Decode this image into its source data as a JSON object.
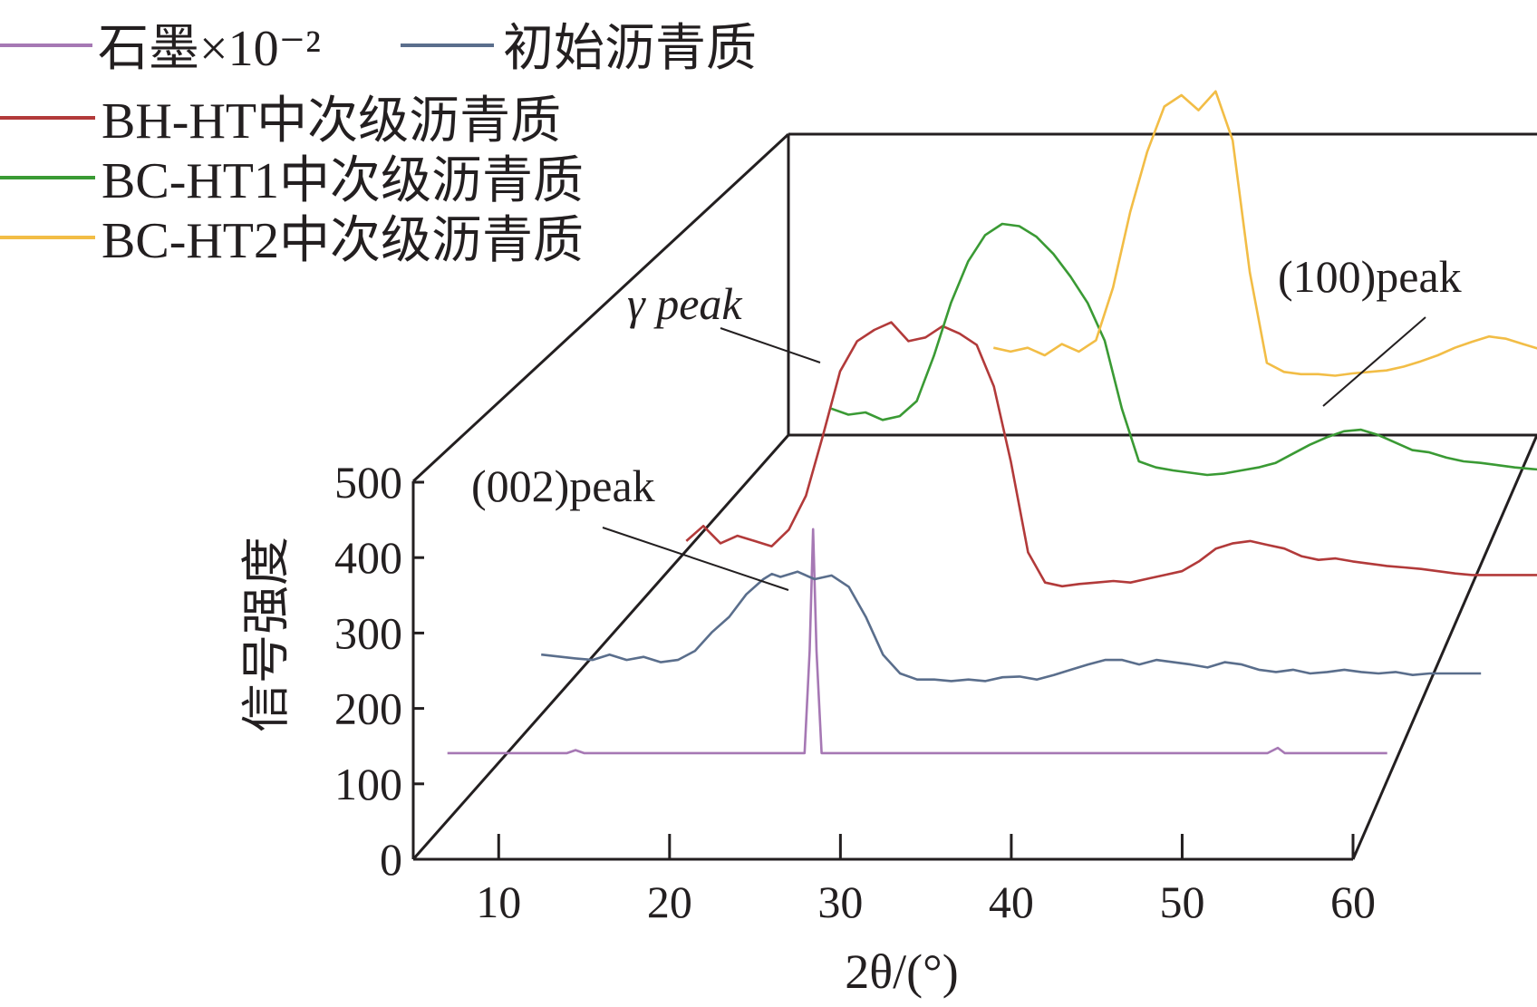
{
  "chart_data": {
    "type": "line",
    "xlabel": "2θ/(°)",
    "ylabel": "信号强度",
    "xlim": [
      5,
      60
    ],
    "ylim": [
      0,
      500
    ],
    "x_ticks": [
      "10",
      "20",
      "30",
      "40",
      "50",
      "60"
    ],
    "y_ticks": [
      "0",
      "100",
      "200",
      "300",
      "400",
      "500"
    ],
    "legend": [
      {
        "label": "石墨×10⁻²",
        "color": "#a678b4"
      },
      {
        "label": "初始沥青质",
        "color": "#5a6e8c"
      },
      {
        "label": "BH-HT中次级沥青质",
        "color": "#b23a3a"
      },
      {
        "label": "BC-HT1中次级沥青质",
        "color": "#3a9a34"
      },
      {
        "label": "BC-HT2中次级沥青质",
        "color": "#f2bd46"
      }
    ],
    "annotations": [
      {
        "text": "(002)peak"
      },
      {
        "text": "γ peak"
      },
      {
        "text": "(100)peak"
      }
    ],
    "series": [
      {
        "name": "石墨×10⁻²",
        "color": "#a678b4",
        "x": [
          7,
          10,
          14,
          14.5,
          15,
          20,
          25,
          27.9,
          28.2,
          28.4,
          28.6,
          28.9,
          30,
          35,
          40,
          45,
          50,
          55,
          55.6,
          56,
          60,
          62
        ],
        "y": [
          65,
          65,
          65,
          69,
          65,
          65,
          65,
          65,
          200,
          362,
          200,
          65,
          65,
          65,
          65,
          65,
          65,
          65,
          72,
          65,
          65,
          65
        ]
      },
      {
        "name": "初始沥青质",
        "color": "#5a6e8c",
        "x": [
          7,
          9,
          10,
          11,
          12,
          13,
          14,
          15,
          16,
          17,
          18,
          19,
          20,
          20.5,
          21,
          22,
          23,
          24,
          25,
          26,
          27,
          28,
          29,
          30,
          31,
          32,
          33,
          34,
          35,
          36,
          37,
          38,
          39,
          40,
          41,
          42,
          43,
          44,
          45,
          46,
          47,
          48,
          49,
          50,
          51,
          52,
          53,
          54,
          55,
          56,
          57,
          58,
          59,
          60,
          61,
          62
        ],
        "y": [
          55,
          50,
          48,
          55,
          48,
          52,
          45,
          48,
          60,
          85,
          105,
          135,
          155,
          162,
          158,
          165,
          155,
          160,
          145,
          105,
          55,
          30,
          22,
          22,
          20,
          22,
          20,
          25,
          26,
          22,
          28,
          35,
          42,
          48,
          48,
          42,
          48,
          45,
          42,
          38,
          45,
          42,
          35,
          32,
          35,
          30,
          32,
          35,
          32,
          30,
          32,
          28,
          30,
          30,
          30,
          30
        ]
      },
      {
        "name": "BH-HT中次级沥青质",
        "color": "#b23a3a",
        "x": [
          10,
          11,
          12,
          13,
          14,
          15,
          16,
          17,
          18,
          19,
          20,
          21,
          22,
          23,
          24,
          25,
          26,
          27,
          28,
          29,
          30,
          31,
          32,
          33,
          34,
          35,
          36,
          37,
          38,
          39,
          40,
          41,
          42,
          43,
          44,
          45,
          46,
          47,
          48,
          49,
          50,
          51,
          52,
          53,
          54,
          55,
          56,
          57,
          58,
          59,
          60,
          61,
          62
        ],
        "y": [
          65,
          85,
          62,
          72,
          65,
          58,
          80,
          125,
          205,
          290,
          330,
          345,
          355,
          330,
          335,
          350,
          340,
          325,
          270,
          170,
          50,
          10,
          5,
          8,
          10,
          12,
          10,
          15,
          20,
          25,
          38,
          55,
          62,
          65,
          60,
          55,
          45,
          40,
          42,
          38,
          35,
          32,
          30,
          28,
          25,
          22,
          20,
          20,
          20,
          20,
          20,
          20,
          20
        ]
      },
      {
        "name": "BC-HT1中次级沥青质",
        "color": "#3a9a34",
        "x": [
          13,
          14,
          15,
          16,
          17,
          18,
          19,
          20,
          21,
          22,
          23,
          24,
          25,
          26,
          27,
          28,
          29,
          30,
          31,
          32,
          33,
          34,
          35,
          36,
          37,
          38,
          39,
          40,
          41,
          42,
          43,
          44,
          45,
          46,
          47,
          48,
          49,
          50,
          51,
          52,
          53,
          54,
          55,
          56,
          57,
          58,
          59,
          60,
          61,
          62
        ],
        "y": [
          100,
          92,
          95,
          85,
          90,
          110,
          170,
          240,
          295,
          330,
          345,
          342,
          328,
          305,
          275,
          240,
          190,
          100,
          30,
          22,
          18,
          15,
          12,
          14,
          18,
          22,
          28,
          40,
          52,
          62,
          70,
          72,
          65,
          55,
          45,
          42,
          35,
          30,
          28,
          25,
          22,
          20,
          18,
          18,
          18,
          18,
          18,
          18,
          18,
          18
        ]
      },
      {
        "name": "BC-HT2中次级沥青质",
        "color": "#f2bd46",
        "x": [
          17,
          18,
          19,
          20,
          21,
          22,
          23,
          24,
          25,
          26,
          27,
          28,
          29,
          30,
          31,
          32,
          33,
          34,
          35,
          36,
          37,
          38,
          39,
          40,
          41,
          42,
          43,
          44,
          45,
          46,
          47,
          48,
          49,
          50,
          51,
          52,
          53,
          54,
          55,
          56,
          57,
          58,
          59,
          60,
          61,
          62
        ],
        "y": [
          40,
          35,
          40,
          30,
          45,
          35,
          50,
          120,
          220,
          300,
          360,
          375,
          355,
          380,
          315,
          140,
          20,
          8,
          5,
          5,
          3,
          6,
          8,
          10,
          15,
          22,
          30,
          40,
          48,
          55,
          52,
          45,
          38,
          32,
          28,
          25,
          22,
          20,
          18,
          15,
          12,
          12,
          12,
          12,
          12,
          12
        ]
      }
    ]
  }
}
